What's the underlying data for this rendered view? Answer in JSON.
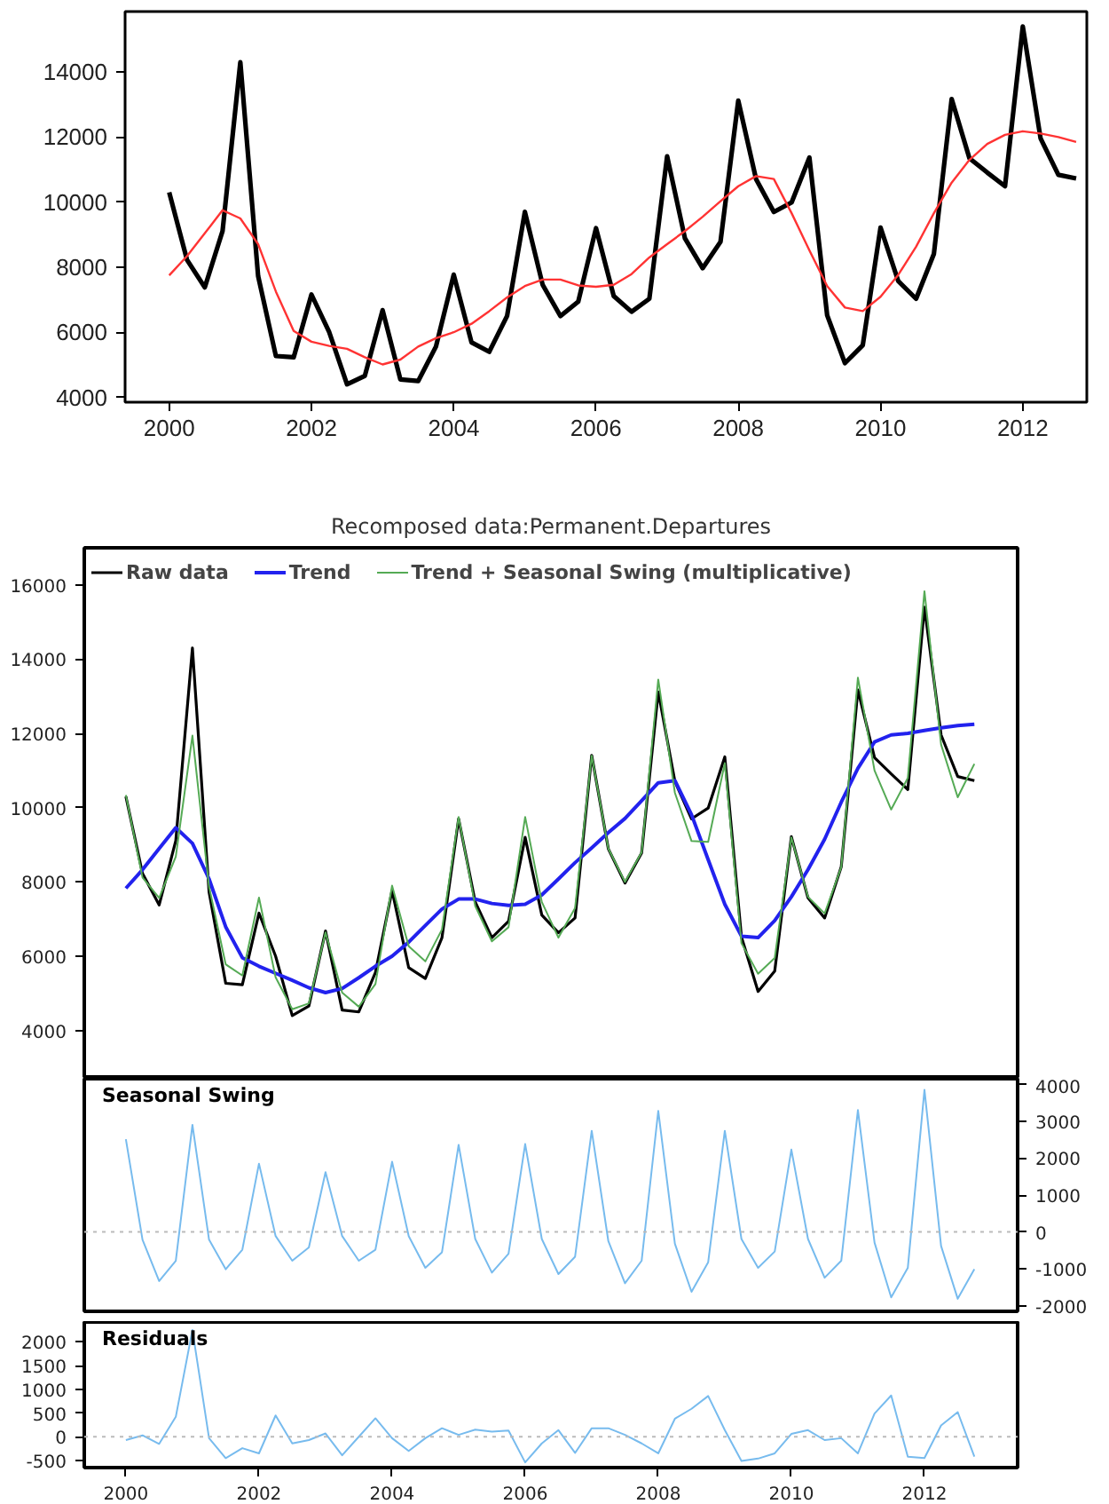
{
  "chart_data": [
    {
      "type": "line",
      "x": [
        2000,
        2000.25,
        2000.5,
        2000.75,
        2001,
        2001.25,
        2001.5,
        2001.75,
        2002,
        2002.25,
        2002.5,
        2002.75,
        2003,
        2003.25,
        2003.5,
        2003.75,
        2004,
        2004.25,
        2004.5,
        2004.75,
        2005,
        2005.25,
        2005.5,
        2005.75,
        2006,
        2006.25,
        2006.5,
        2006.75,
        2007,
        2007.25,
        2007.5,
        2007.75,
        2008,
        2008.25,
        2008.5,
        2008.75,
        2009,
        2009.25,
        2009.5,
        2009.75,
        2010,
        2010.25,
        2010.5,
        2010.75,
        2011,
        2011.25,
        2011.5,
        2011.75,
        2012,
        2012.25,
        2012.5,
        2012.75
      ],
      "series": [
        {
          "color": "#000000",
          "values": [
            10300,
            8230,
            7380,
            9110,
            14300,
            7730,
            5270,
            5230,
            7160,
            6000,
            4400,
            4660,
            6680,
            4550,
            4500,
            5560,
            7770,
            5690,
            5400,
            6500,
            9700,
            7460,
            6500,
            6940,
            9200,
            7110,
            6630,
            7030,
            11410,
            8890,
            7970,
            8780,
            13120,
            10710,
            9700,
            9990,
            11370,
            6520,
            5050,
            5600,
            9220,
            7570,
            7030,
            8410,
            13170,
            11350,
            10910,
            10490,
            15400,
            11960,
            10840,
            10730
          ]
        },
        {
          "color": "#ff3333",
          "values": [
            7750,
            8340,
            9040,
            9750,
            9500,
            8710,
            7250,
            6040,
            5710,
            5580,
            5490,
            5230,
            5010,
            5160,
            5560,
            5820,
            6000,
            6260,
            6650,
            7070,
            7420,
            7620,
            7620,
            7440,
            7400,
            7460,
            7790,
            8300,
            8710,
            9110,
            9550,
            10030,
            10490,
            10800,
            10710,
            9660,
            8520,
            7420,
            6760,
            6650,
            7090,
            7770,
            8630,
            9660,
            10600,
            11300,
            11790,
            12070,
            12180,
            12110,
            12000,
            11850
          ]
        }
      ],
      "xlim": [
        1999.38,
        2012.9
      ],
      "xticks": [
        2000,
        2002,
        2004,
        2006,
        2008,
        2010,
        2012
      ],
      "ylim": [
        3850,
        15860
      ],
      "yticks": [
        4000,
        6000,
        8000,
        10000,
        12000,
        14000
      ],
      "grid": false,
      "legend": false
    },
    {
      "type": "line",
      "title": "Recomposed data:Permanent.Departures",
      "x": [
        2000,
        2000.25,
        2000.5,
        2000.75,
        2001,
        2001.25,
        2001.5,
        2001.75,
        2002,
        2002.25,
        2002.5,
        2002.75,
        2003,
        2003.25,
        2003.5,
        2003.75,
        2004,
        2004.25,
        2004.5,
        2004.75,
        2005,
        2005.25,
        2005.5,
        2005.75,
        2006,
        2006.25,
        2006.5,
        2006.75,
        2007,
        2007.25,
        2007.5,
        2007.75,
        2008,
        2008.25,
        2008.5,
        2008.75,
        2009,
        2009.25,
        2009.5,
        2009.75,
        2010,
        2010.25,
        2010.5,
        2010.75,
        2011,
        2011.25,
        2011.5,
        2011.75,
        2012,
        2012.25,
        2012.5,
        2012.75
      ],
      "series": [
        {
          "name": "Raw data",
          "color": "#000000",
          "values": [
            10300,
            8230,
            7380,
            9110,
            14300,
            7730,
            5270,
            5230,
            7160,
            6000,
            4400,
            4660,
            6680,
            4550,
            4500,
            5560,
            7770,
            5690,
            5400,
            6500,
            9700,
            7460,
            6500,
            6940,
            9200,
            7110,
            6630,
            7030,
            11410,
            8890,
            7970,
            8780,
            13120,
            10710,
            9700,
            9990,
            11370,
            6520,
            5050,
            5600,
            9220,
            7570,
            7030,
            8410,
            13170,
            11350,
            10910,
            10490,
            15400,
            11960,
            10840,
            10730
          ]
        },
        {
          "name": "Trend",
          "color": "#2222ee",
          "values": [
            7830,
            8330,
            8900,
            9460,
            9040,
            8080,
            6790,
            5960,
            5730,
            5540,
            5350,
            5150,
            5020,
            5130,
            5420,
            5730,
            6000,
            6380,
            6830,
            7270,
            7540,
            7540,
            7420,
            7370,
            7400,
            7650,
            8080,
            8520,
            8920,
            9330,
            9710,
            10190,
            10670,
            10730,
            9810,
            8600,
            7400,
            6540,
            6500,
            6960,
            7600,
            8330,
            9150,
            10150,
            11060,
            11770,
            11960,
            12000,
            12080,
            12150,
            12210,
            12250
          ]
        },
        {
          "name": "Trend + Seasonal Swing (multiplicative)",
          "color": "#55aa55",
          "values": [
            10340,
            8120,
            7570,
            8680,
            11940,
            7870,
            5780,
            5480,
            7580,
            5430,
            4570,
            4730,
            6640,
            5020,
            4640,
            5250,
            7900,
            6270,
            5860,
            6720,
            9750,
            7350,
            6400,
            6780,
            9750,
            7460,
            6500,
            7300,
            11400,
            8900,
            8000,
            8800,
            13450,
            10400,
            9100,
            9080,
            11200,
            6350,
            5530,
            5950,
            9200,
            7600,
            7150,
            8400,
            13500,
            11000,
            9950,
            10800,
            15830,
            11700,
            10280,
            11180
          ]
        }
      ],
      "xlim": [
        1999.375,
        2013.4
      ],
      "ylim": [
        2700,
        17000
      ],
      "yticks": [
        4000,
        6000,
        8000,
        10000,
        12000,
        14000,
        16000
      ],
      "tick_labels": "y",
      "grid": false,
      "legend": "top left"
    },
    {
      "type": "line",
      "title": "Seasonal Swing",
      "x": [
        2000,
        2000.25,
        2000.5,
        2000.75,
        2001,
        2001.25,
        2001.5,
        2001.75,
        2002,
        2002.25,
        2002.5,
        2002.75,
        2003,
        2003.25,
        2003.5,
        2003.75,
        2004,
        2004.25,
        2004.5,
        2004.75,
        2005,
        2005.25,
        2005.5,
        2005.75,
        2006,
        2006.25,
        2006.5,
        2006.75,
        2007,
        2007.25,
        2007.5,
        2007.75,
        2008,
        2008.25,
        2008.5,
        2008.75,
        2009,
        2009.25,
        2009.5,
        2009.75,
        2010,
        2010.25,
        2010.5,
        2010.75,
        2011,
        2011.25,
        2011.5,
        2011.75,
        2012,
        2012.25,
        2012.5,
        2012.75
      ],
      "series": [
        {
          "color": "#77bbee",
          "axis": "y2",
          "values": [
            2510,
            -210,
            -1330,
            -780,
            2900,
            -210,
            -1010,
            -480,
            1850,
            -110,
            -780,
            -420,
            1620,
            -110,
            -780,
            -480,
            1900,
            -110,
            -970,
            -550,
            2360,
            -190,
            -1100,
            -590,
            2380,
            -190,
            -1140,
            -670,
            2740,
            -250,
            -1390,
            -780,
            3280,
            -320,
            -1620,
            -820,
            2740,
            -190,
            -970,
            -530,
            2230,
            -190,
            -1240,
            -780,
            3300,
            -290,
            -1770,
            -970,
            3850,
            -380,
            -1810,
            -1010
          ]
        }
      ],
      "xlim": [
        1999.375,
        2013.4
      ],
      "y2lim": [
        -2150,
        4150
      ],
      "y2ticks": [
        -2000,
        -1000,
        0,
        1000,
        2000,
        3000,
        4000
      ],
      "ref_lines": [
        {
          "axis": "y2",
          "value": 0,
          "color": "#bbbbbb",
          "line_style": "dotted"
        }
      ],
      "tick_labels": "y",
      "grid": false,
      "legend": false
    },
    {
      "type": "line",
      "title": "Residuals",
      "x": [
        2000,
        2000.25,
        2000.5,
        2000.75,
        2001,
        2001.25,
        2001.5,
        2001.75,
        2002,
        2002.25,
        2002.5,
        2002.75,
        2003,
        2003.25,
        2003.5,
        2003.75,
        2004,
        2004.25,
        2004.5,
        2004.75,
        2005,
        2005.25,
        2005.5,
        2005.75,
        2006,
        2006.25,
        2006.5,
        2006.75,
        2007,
        2007.25,
        2007.5,
        2007.75,
        2008,
        2008.25,
        2008.5,
        2008.75,
        2009,
        2009.25,
        2009.5,
        2009.75,
        2010,
        2010.25,
        2010.5,
        2010.75,
        2011,
        2011.25,
        2011.5,
        2011.75,
        2012,
        2012.25,
        2012.5,
        2012.75
      ],
      "series": [
        {
          "color": "#77bbee",
          "values": [
            -70,
            30,
            -150,
            420,
            2250,
            -30,
            -450,
            -240,
            -350,
            450,
            -140,
            -70,
            70,
            -390,
            0,
            390,
            -30,
            -300,
            -30,
            180,
            40,
            150,
            110,
            130,
            -540,
            -140,
            140,
            -340,
            180,
            180,
            40,
            -140,
            -350,
            380,
            590,
            860,
            140,
            -510,
            -460,
            -350,
            60,
            140,
            -70,
            -30,
            -350,
            490,
            870,
            -420,
            -450,
            240,
            520,
            -420
          ]
        }
      ],
      "xlim": [
        1999.375,
        2013.4
      ],
      "xticks": [
        2000,
        2002,
        2004,
        2006,
        2008,
        2010,
        2012
      ],
      "ylim": [
        -650,
        2420
      ],
      "yticks": [
        -500,
        0,
        500,
        1000,
        1500,
        2000
      ],
      "ref_lines": [
        {
          "axis": "y",
          "value": 0,
          "color": "#bbbbbb",
          "line_style": "dotted"
        }
      ],
      "grid": false,
      "legend": false
    }
  ]
}
